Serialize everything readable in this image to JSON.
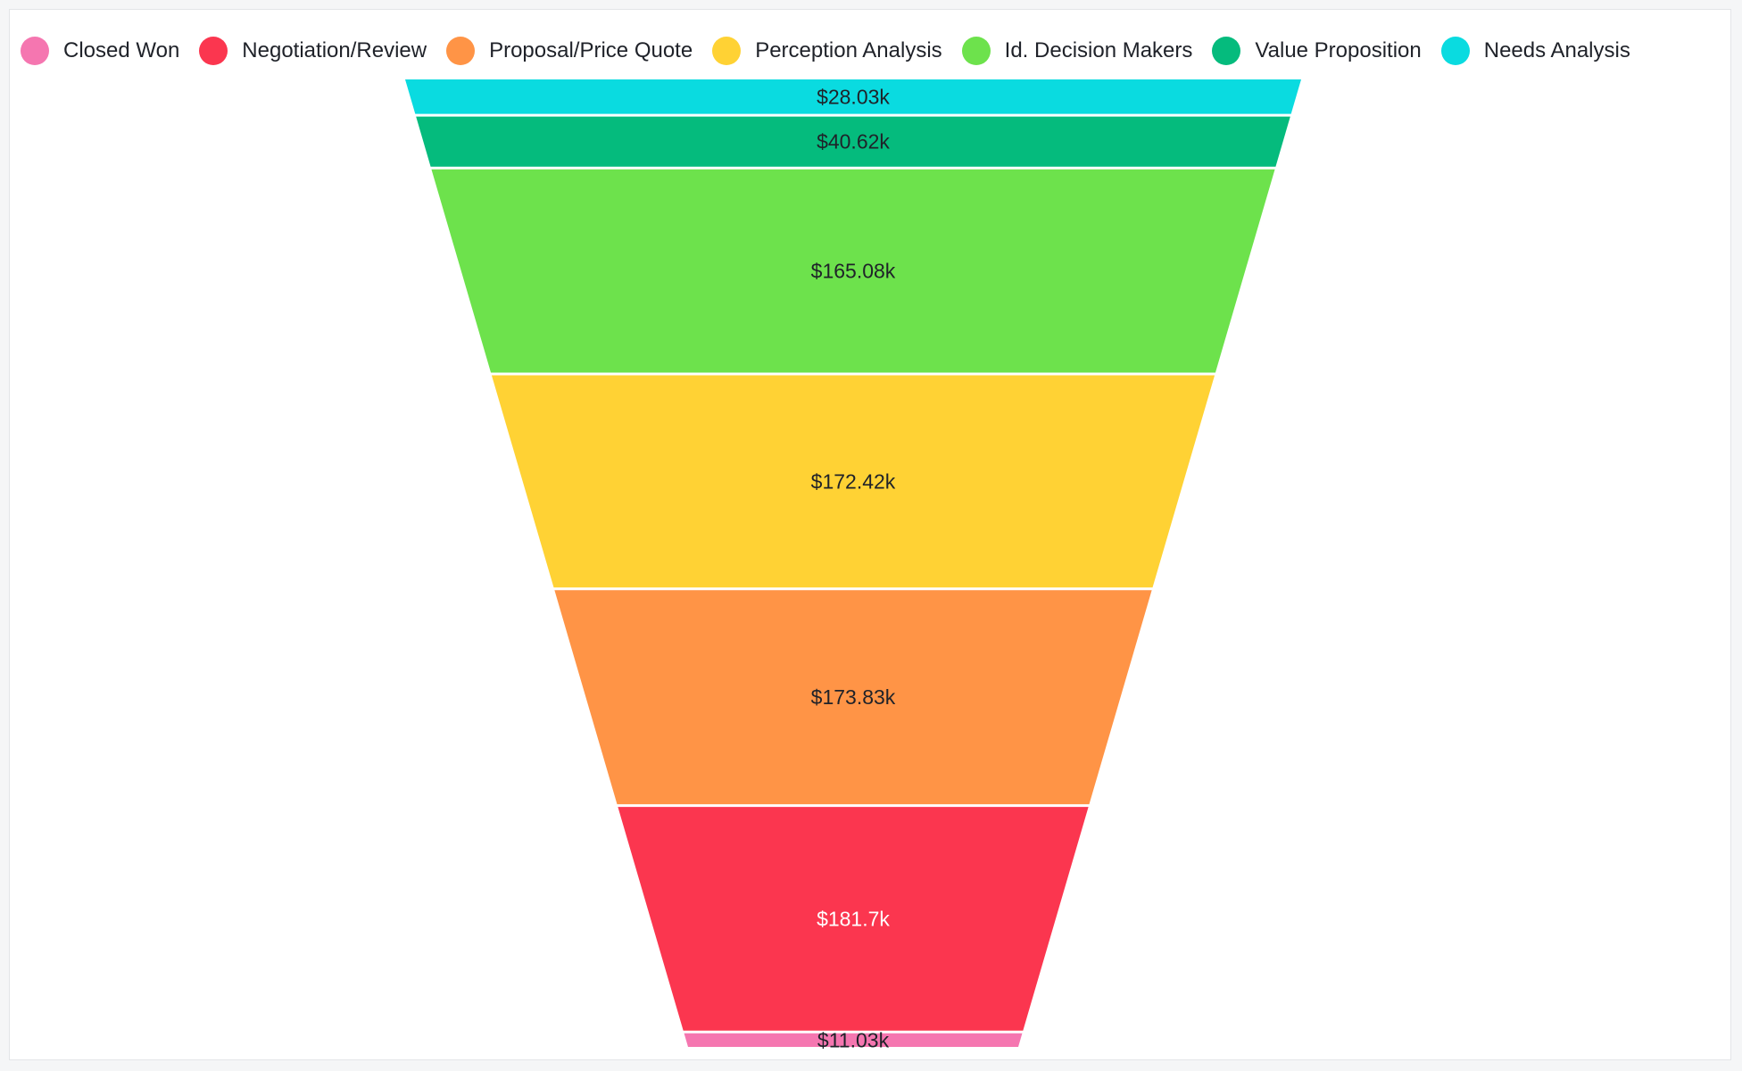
{
  "chart_data": {
    "type": "funnel",
    "title": "",
    "legend_position": "top-left",
    "stages": [
      {
        "name": "Needs Analysis",
        "value": 28.03,
        "label": "$28.03k",
        "color": "#0adbe0",
        "label_color": "#1f2229"
      },
      {
        "name": "Value Proposition",
        "value": 40.62,
        "label": "$40.62k",
        "color": "#05bb7d",
        "label_color": "#1f2229"
      },
      {
        "name": "Id. Decision Makers",
        "value": 165.08,
        "label": "$165.08k",
        "color": "#6de24c",
        "label_color": "#1f2229"
      },
      {
        "name": "Perception Analysis",
        "value": 172.42,
        "label": "$172.42k",
        "color": "#ffd234",
        "label_color": "#1f2229"
      },
      {
        "name": "Proposal/Price Quote",
        "value": 173.83,
        "label": "$173.83k",
        "color": "#ff9446",
        "label_color": "#1f2229"
      },
      {
        "name": "Negotiation/Review",
        "value": 181.7,
        "label": "$181.7k",
        "color": "#fb364f",
        "label_color": "#ffffff"
      },
      {
        "name": "Closed Won",
        "value": 11.03,
        "label": "$11.03k",
        "color": "#f576b0",
        "label_color": "#1f2229"
      }
    ],
    "legend": [
      {
        "name": "Closed Won",
        "color": "#f576b0"
      },
      {
        "name": "Negotiation/Review",
        "color": "#fb364f"
      },
      {
        "name": "Proposal/Price Quote",
        "color": "#ff9446"
      },
      {
        "name": "Perception Analysis",
        "color": "#ffd234"
      },
      {
        "name": "Id. Decision Makers",
        "color": "#6de24c"
      },
      {
        "name": "Value Proposition",
        "color": "#05bb7d"
      },
      {
        "name": "Needs Analysis",
        "color": "#0adbe0"
      }
    ]
  }
}
